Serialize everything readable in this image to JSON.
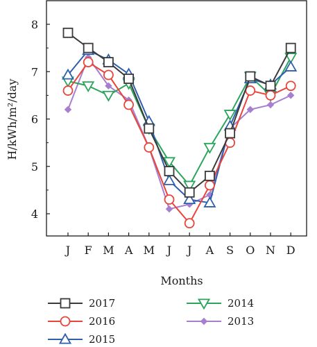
{
  "chart_data": {
    "type": "line",
    "title": "",
    "xlabel": "Months",
    "ylabel": "H/kWh/m²/day",
    "categories": [
      "J",
      "F",
      "M",
      "A",
      "M",
      "J",
      "J",
      "A",
      "S",
      "O",
      "N",
      "D"
    ],
    "ylim": [
      3.6,
      8.3
    ],
    "yticks": [
      4,
      5,
      6,
      7,
      8
    ],
    "grid": false,
    "legend_position": "bottom",
    "series": [
      {
        "name": "2017",
        "color": "#3a3a3a",
        "marker": "square",
        "values": [
          7.82,
          7.5,
          7.2,
          6.85,
          5.8,
          4.9,
          4.45,
          4.8,
          5.7,
          6.9,
          6.7,
          7.5
        ]
      },
      {
        "name": "2016",
        "color": "#e8443a",
        "marker": "circle",
        "values": [
          6.6,
          7.2,
          6.93,
          6.3,
          5.4,
          4.3,
          3.8,
          4.6,
          5.5,
          6.6,
          6.5,
          6.7
        ]
      },
      {
        "name": "2015",
        "color": "#2d5fad",
        "marker": "triangle-up",
        "values": [
          6.93,
          7.45,
          7.25,
          6.95,
          5.95,
          4.7,
          4.3,
          4.23,
          5.85,
          6.85,
          6.72,
          7.1
        ]
      },
      {
        "name": "2014",
        "color": "#2ba55b",
        "marker": "triangle-down",
        "values": [
          6.8,
          6.7,
          6.5,
          6.75,
          5.8,
          5.1,
          4.6,
          5.4,
          6.1,
          6.9,
          6.5,
          7.3
        ]
      },
      {
        "name": "2013",
        "color": "#a77fcf",
        "marker": "diamond",
        "values": [
          6.2,
          7.3,
          6.7,
          6.4,
          5.4,
          4.1,
          4.2,
          4.4,
          5.8,
          6.2,
          6.3,
          6.5
        ]
      }
    ]
  }
}
